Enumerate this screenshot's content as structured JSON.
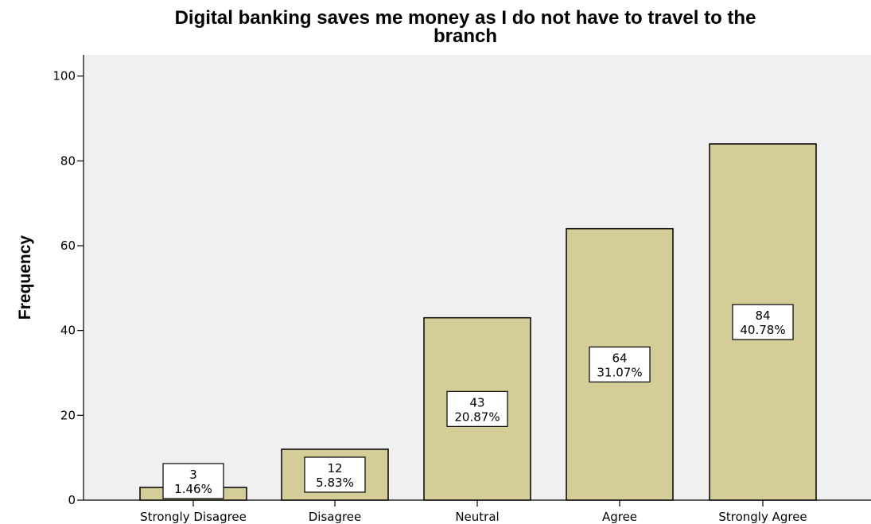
{
  "chart_data": {
    "type": "bar",
    "title_lines": [
      "Digital banking saves me money as I do not have to travel to the",
      "branch"
    ],
    "ylabel": "Frequency",
    "xlabel": "",
    "ylim": [
      0,
      105
    ],
    "yticks": [
      0,
      20,
      40,
      60,
      80,
      100
    ],
    "categories": [
      "Strongly Disagree",
      "Disagree",
      "Neutral",
      "Agree",
      "Strongly Agree"
    ],
    "values": [
      3,
      12,
      43,
      64,
      84
    ],
    "percent_labels": [
      "1.46%",
      "5.83%",
      "20.87%",
      "31.07%",
      "40.78%"
    ],
    "grid": false,
    "legend": "none",
    "colors": {
      "bar_fill": "#d4cd98",
      "bar_stroke": "#000000",
      "plot_bg": "#f0f0f0",
      "label_box": "#ffffff"
    }
  }
}
